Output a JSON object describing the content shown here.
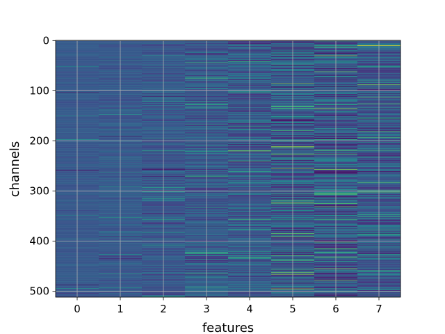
{
  "chart_data": {
    "type": "heatmap",
    "title": "",
    "xlabel": "features",
    "ylabel": "channels",
    "columns": [
      0,
      1,
      2,
      3,
      4,
      5,
      6,
      7
    ],
    "x_ticks": [
      "0",
      "1",
      "2",
      "3",
      "4",
      "5",
      "6",
      "7"
    ],
    "y_ticks": [
      "0",
      "100",
      "200",
      "300",
      "400",
      "500"
    ],
    "y_tick_values": [
      0,
      100,
      200,
      300,
      400,
      500
    ],
    "rows": 512,
    "xlim": [
      -0.5,
      7.5
    ],
    "ylim": [
      511.5,
      -0.5
    ],
    "grid": true,
    "colormap": "viridis",
    "column_variability": [
      0.1,
      0.14,
      0.22,
      0.3,
      0.36,
      0.48,
      0.5,
      0.38
    ],
    "base_color": "#3d4b8c",
    "highlights": [
      {
        "column": 4,
        "row": 0,
        "level": 0.95
      },
      {
        "column": 5,
        "row": 300,
        "level": 0.9
      },
      {
        "column": 6,
        "row": 136,
        "level": 0.9
      },
      {
        "column": 7,
        "row": 10,
        "level": 0.95
      },
      {
        "column": 7,
        "row": 88,
        "level": 0.8
      },
      {
        "column": 7,
        "row": 302,
        "level": 0.75
      },
      {
        "column": 4,
        "row": 220,
        "level": 0.85
      },
      {
        "column": 5,
        "row": 495,
        "level": 0.9
      },
      {
        "column": 6,
        "row": 455,
        "level": 0.85
      }
    ]
  }
}
